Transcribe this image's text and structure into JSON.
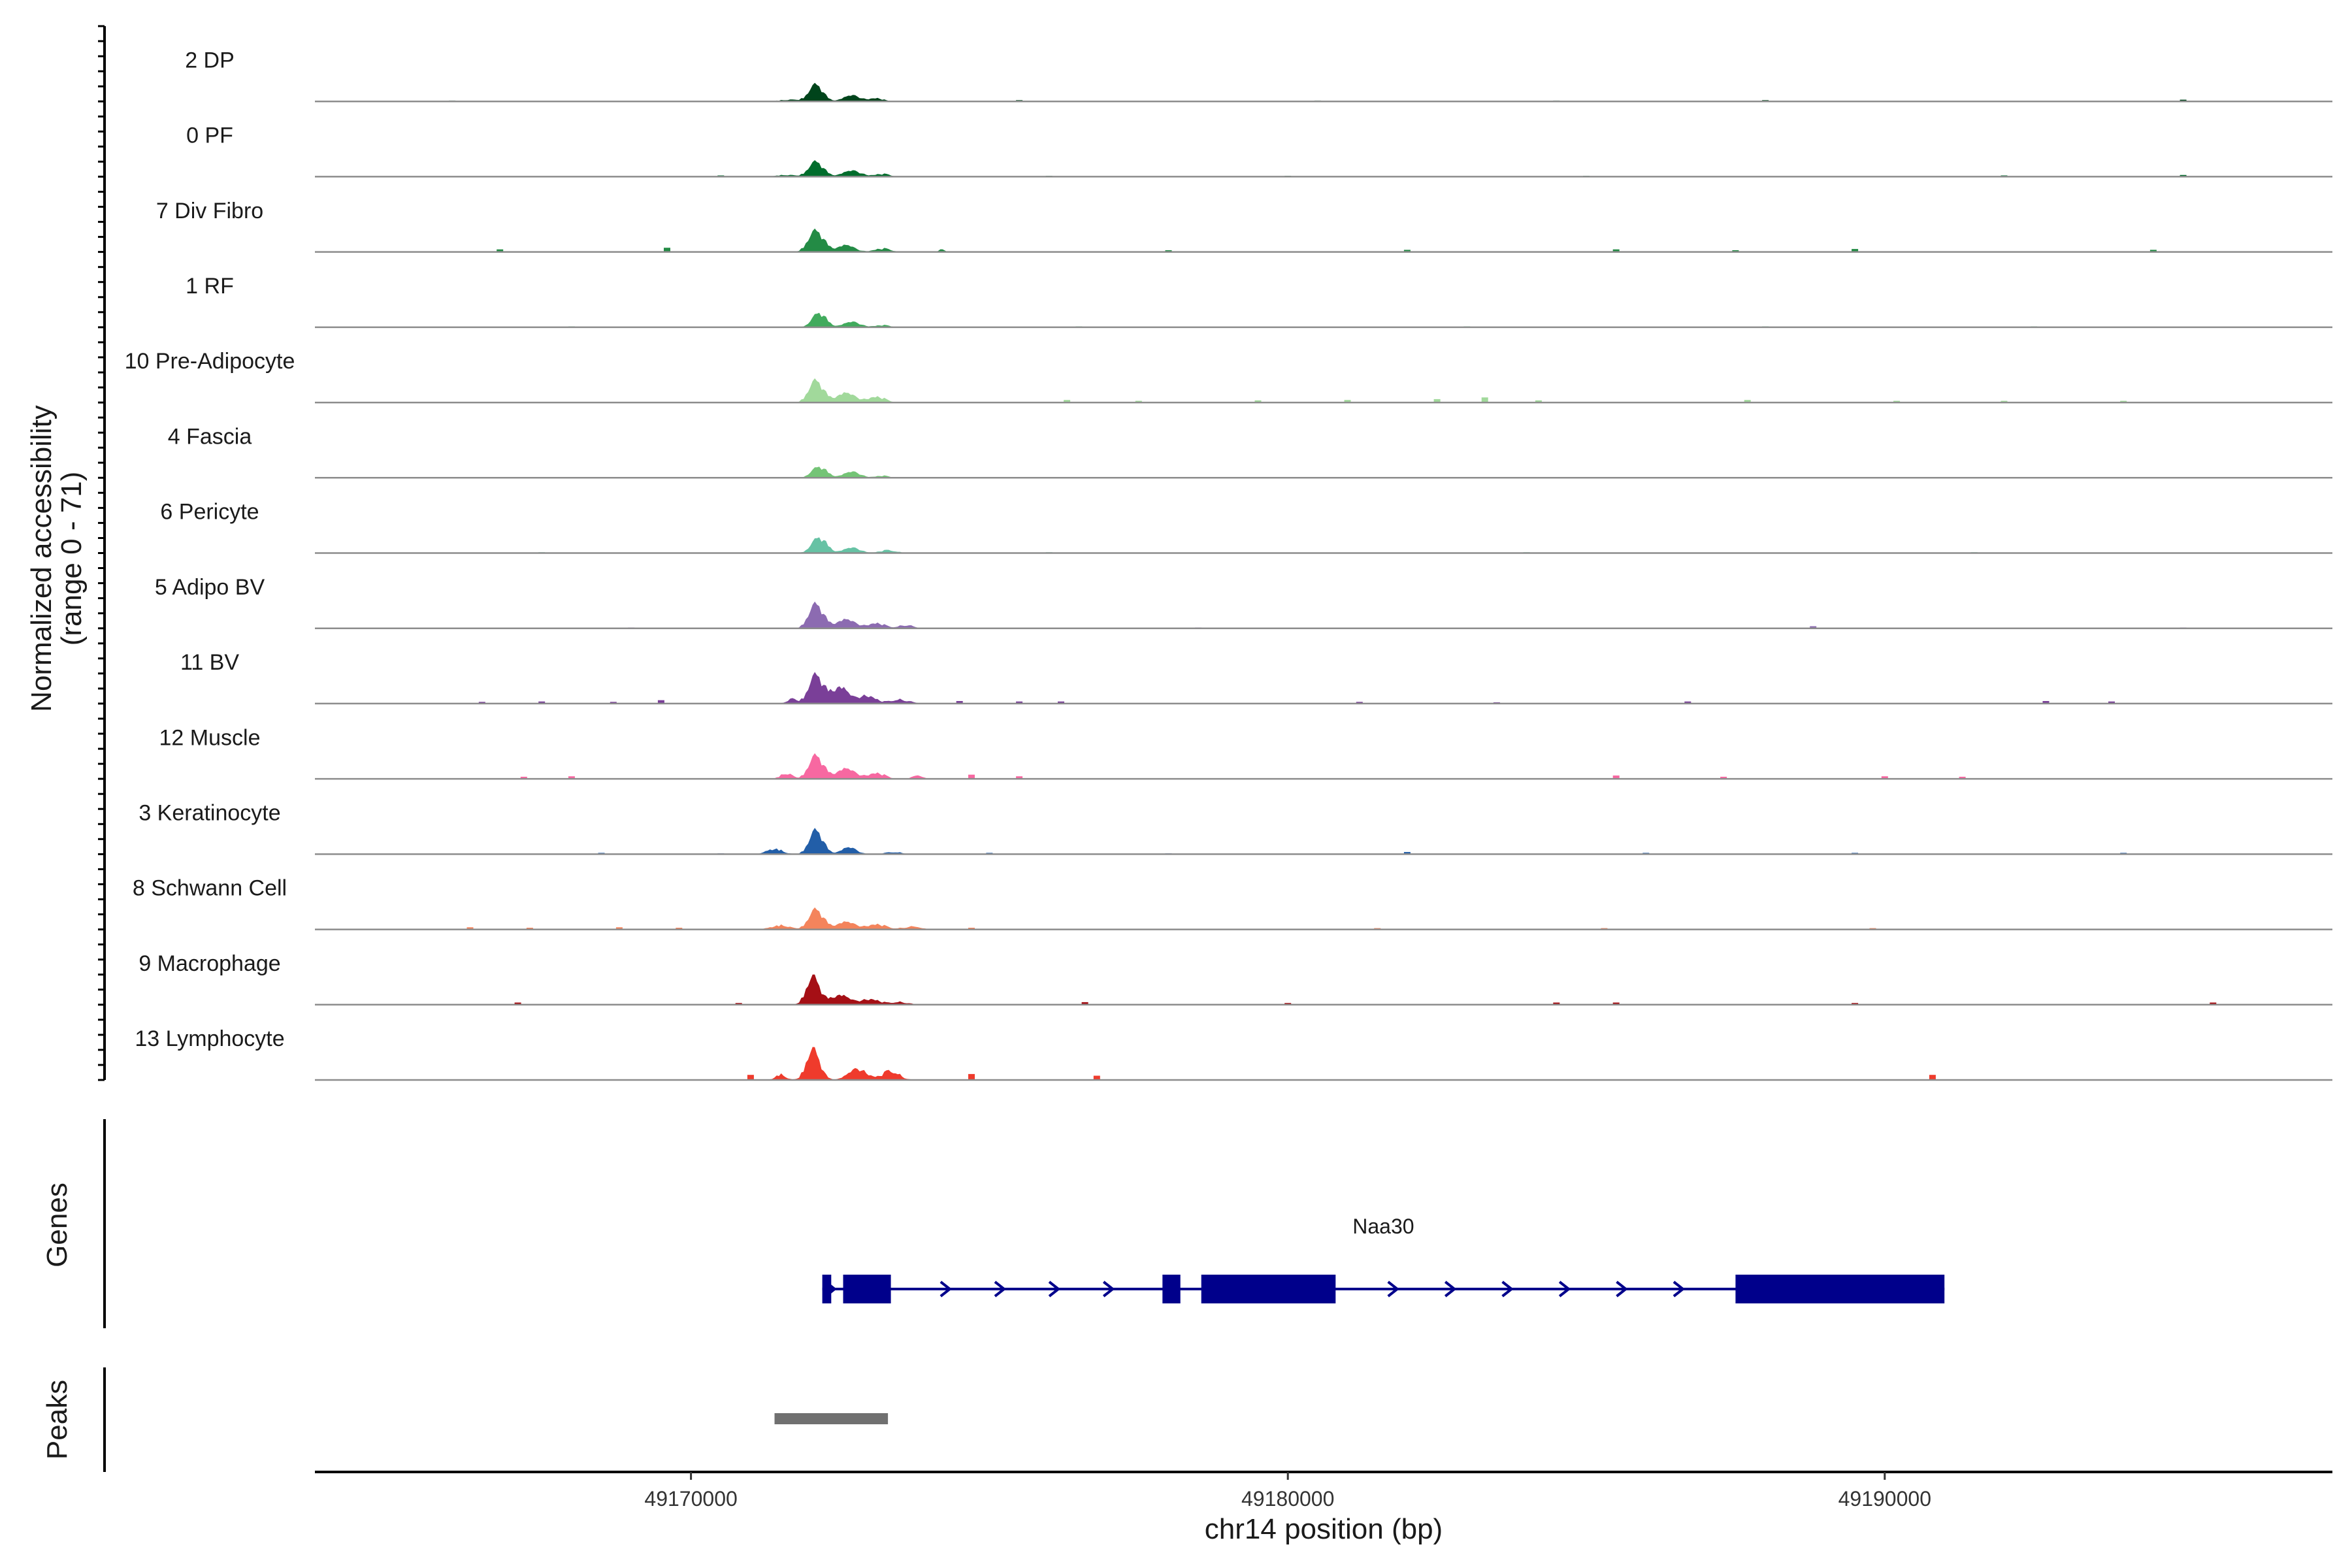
{
  "chart_data": {
    "type": "area",
    "title": "",
    "ylabel_line1": "Normalized accessibility",
    "ylabel_line2": "(range 0 - 71)",
    "ylim": [
      0,
      71
    ],
    "xlabel": "chr14 position (bp)",
    "xlim": [
      49163700,
      49197500
    ],
    "xticks": [
      {
        "value": 49170000,
        "label": "49170000"
      },
      {
        "value": 49180000,
        "label": "49180000"
      },
      {
        "value": 49190000,
        "label": "49190000"
      }
    ],
    "tracks": [
      {
        "name": "2 DP",
        "color": "#00441b",
        "peaks": [
          [
            49172100,
            50,
            160
          ],
          [
            49172700,
            18,
            200
          ],
          [
            49173100,
            10,
            160
          ],
          [
            49171700,
            5,
            300
          ]
        ],
        "noise": [
          [
            49166000,
            2
          ],
          [
            49175500,
            3
          ],
          [
            49180500,
            2
          ],
          [
            49184500,
            2
          ],
          [
            49188000,
            3
          ],
          [
            49195000,
            4
          ]
        ]
      },
      {
        "name": "0 PF",
        "color": "#006d2c",
        "peaks": [
          [
            49172100,
            45,
            170
          ],
          [
            49172700,
            18,
            220
          ],
          [
            49173200,
            8,
            180
          ],
          [
            49171600,
            5,
            250
          ]
        ],
        "noise": [
          [
            49170500,
            3
          ],
          [
            49176000,
            2
          ],
          [
            49180000,
            2
          ],
          [
            49185000,
            2
          ],
          [
            49192000,
            3
          ],
          [
            49195000,
            4
          ]
        ]
      },
      {
        "name": "7 Div Fibro",
        "color": "#238b45",
        "peaks": [
          [
            49172100,
            64,
            180
          ],
          [
            49172600,
            20,
            200
          ],
          [
            49173200,
            10,
            200
          ],
          [
            49174200,
            8,
            60
          ]
        ],
        "noise": [
          [
            49166800,
            6
          ],
          [
            49169600,
            10
          ],
          [
            49178000,
            4
          ],
          [
            49182000,
            5
          ],
          [
            49185500,
            6
          ],
          [
            49187500,
            4
          ],
          [
            49189500,
            7
          ],
          [
            49194500,
            5
          ]
        ]
      },
      {
        "name": "1 RF",
        "color": "#41ab5d",
        "peaks": [
          [
            49172150,
            44,
            160
          ],
          [
            49172700,
            16,
            200
          ],
          [
            49173200,
            6,
            180
          ]
        ],
        "noise": [
          [
            49168000,
            2
          ],
          [
            49176500,
            2
          ],
          [
            49183000,
            2
          ],
          [
            49188000,
            2
          ],
          [
            49192500,
            2
          ]
        ]
      },
      {
        "name": "10 Pre-Adipocyte",
        "color": "#a1d99b",
        "peaks": [
          [
            49172100,
            66,
            170
          ],
          [
            49172600,
            28,
            220
          ],
          [
            49173100,
            18,
            200
          ]
        ],
        "noise": [
          [
            49176300,
            6
          ],
          [
            49177500,
            4
          ],
          [
            49179500,
            5
          ],
          [
            49181000,
            6
          ],
          [
            49182500,
            8
          ],
          [
            49183300,
            12
          ],
          [
            49184200,
            5
          ],
          [
            49187700,
            6
          ],
          [
            49190200,
            4
          ],
          [
            49192000,
            4
          ],
          [
            49194000,
            4
          ]
        ]
      },
      {
        "name": "4 Fascia",
        "color": "#74c476",
        "peaks": [
          [
            49172150,
            34,
            170
          ],
          [
            49172700,
            18,
            200
          ],
          [
            49173200,
            6,
            160
          ]
        ],
        "noise": [
          [
            49168500,
            2
          ],
          [
            49177000,
            2
          ],
          [
            49186000,
            2
          ],
          [
            49193000,
            2
          ]
        ]
      },
      {
        "name": "6 Pericyte",
        "color": "#66c2a4",
        "peaks": [
          [
            49172150,
            48,
            170
          ],
          [
            49172700,
            16,
            200
          ],
          [
            49173300,
            8,
            200
          ]
        ],
        "noise": [
          [
            49167500,
            2
          ],
          [
            49176000,
            2
          ],
          [
            49184000,
            2
          ],
          [
            49191500,
            2
          ]
        ]
      },
      {
        "name": "5 Adipo BV",
        "color": "#8c6bb1",
        "peaks": [
          [
            49172100,
            73,
            170
          ],
          [
            49172600,
            26,
            220
          ],
          [
            49173100,
            16,
            200
          ],
          [
            49173600,
            10,
            160
          ]
        ],
        "noise": [
          [
            49169000,
            2
          ],
          [
            49178500,
            2
          ],
          [
            49188800,
            5
          ],
          [
            49195000,
            2
          ]
        ]
      },
      {
        "name": "11 BV",
        "color": "#7a3f98",
        "peaks": [
          [
            49172100,
            86,
            170
          ],
          [
            49172500,
            48,
            200
          ],
          [
            49172950,
            26,
            200
          ],
          [
            49173500,
            12,
            220
          ],
          [
            49171700,
            14,
            120
          ]
        ],
        "noise": [
          [
            49166500,
            4
          ],
          [
            49167500,
            5
          ],
          [
            49168700,
            4
          ],
          [
            49169500,
            8
          ],
          [
            49174500,
            6
          ],
          [
            49175500,
            5
          ],
          [
            49176200,
            5
          ],
          [
            49181200,
            4
          ],
          [
            49183500,
            3
          ],
          [
            49186700,
            5
          ],
          [
            49192700,
            6
          ],
          [
            49193800,
            5
          ]
        ]
      },
      {
        "name": "12 Muscle",
        "color": "#f768a1",
        "peaks": [
          [
            49172100,
            70,
            170
          ],
          [
            49172600,
            30,
            220
          ],
          [
            49173100,
            18,
            200
          ],
          [
            49171600,
            16,
            140
          ],
          [
            49173800,
            10,
            120
          ]
        ],
        "noise": [
          [
            49167200,
            5
          ],
          [
            49168000,
            6
          ],
          [
            49174700,
            10
          ],
          [
            49175500,
            6
          ],
          [
            49185500,
            8
          ],
          [
            49187300,
            5
          ],
          [
            49190000,
            6
          ],
          [
            49191300,
            5
          ]
        ]
      },
      {
        "name": "3 Keratinocyte",
        "color": "#225ea8",
        "peaks": [
          [
            49172100,
            72,
            160
          ],
          [
            49171400,
            16,
            180
          ],
          [
            49172650,
            20,
            180
          ],
          [
            49173400,
            6,
            200
          ]
        ],
        "noise": [
          [
            49168500,
            3
          ],
          [
            49170500,
            2
          ],
          [
            49175000,
            3
          ],
          [
            49178000,
            2
          ],
          [
            49182000,
            5
          ],
          [
            49186000,
            3
          ],
          [
            49189500,
            3
          ],
          [
            49194000,
            3
          ]
        ]
      },
      {
        "name": "8 Schwann Cell",
        "color": "#f4845c",
        "peaks": [
          [
            49172100,
            60,
            170
          ],
          [
            49172600,
            22,
            220
          ],
          [
            49173100,
            16,
            220
          ],
          [
            49171500,
            12,
            220
          ],
          [
            49173700,
            8,
            220
          ]
        ],
        "noise": [
          [
            49166300,
            5
          ],
          [
            49167300,
            4
          ],
          [
            49168800,
            5
          ],
          [
            49169800,
            4
          ],
          [
            49174700,
            4
          ],
          [
            49181500,
            3
          ],
          [
            49185300,
            3
          ],
          [
            49189800,
            3
          ]
        ]
      },
      {
        "name": "9 Macrophage",
        "color": "#a50f15",
        "peaks": [
          [
            49172050,
            82,
            160
          ],
          [
            49172500,
            28,
            220
          ],
          [
            49173000,
            18,
            220
          ],
          [
            49173500,
            8,
            200
          ]
        ],
        "noise": [
          [
            49167100,
            5
          ],
          [
            49170800,
            4
          ],
          [
            49176600,
            6
          ],
          [
            49180000,
            4
          ],
          [
            49184500,
            5
          ],
          [
            49185500,
            5
          ],
          [
            49189500,
            4
          ],
          [
            49195500,
            5
          ]
        ]
      },
      {
        "name": "13 Lymphocyte",
        "color": "#ef3b2c",
        "peaks": [
          [
            49172050,
            90,
            160
          ],
          [
            49172800,
            34,
            220
          ],
          [
            49173350,
            26,
            200
          ],
          [
            49171500,
            16,
            120
          ]
        ],
        "noise": [
          [
            49171000,
            12
          ],
          [
            49174700,
            14
          ],
          [
            49176800,
            10
          ],
          [
            49190800,
            12
          ]
        ]
      }
    ],
    "genes": {
      "label": "Genes",
      "name": "Naa30",
      "strand": "+",
      "color": "#00008b",
      "start": 49172200,
      "end": 49191000,
      "exons": [
        [
          49172200,
          49172350
        ],
        [
          49172550,
          49173350
        ],
        [
          49177900,
          49178200
        ],
        [
          49178550,
          49180800
        ],
        [
          49187500,
          49191000
        ]
      ]
    },
    "peaks_track": {
      "label": "Peaks",
      "color": "#707070",
      "regions": [
        [
          49171400,
          49173300
        ]
      ]
    }
  }
}
